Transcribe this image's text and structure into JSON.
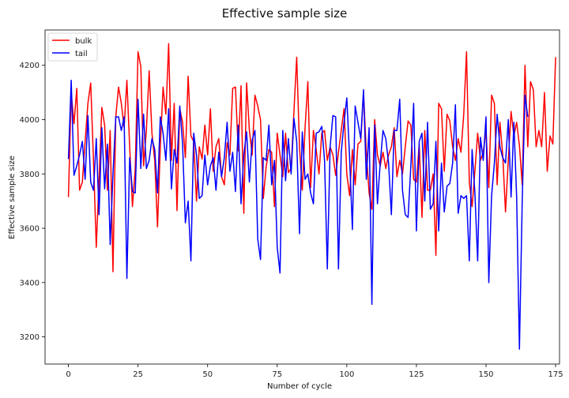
{
  "chart_data": {
    "type": "line",
    "title": "Effective sample size",
    "xlabel": "Number of cycle",
    "ylabel": "Effective sample size",
    "xlim": [
      -8.4,
      176.4
    ],
    "ylim": [
      3100,
      4330
    ],
    "xticks": [
      0,
      25,
      50,
      75,
      100,
      125,
      150,
      175
    ],
    "yticks": [
      3200,
      3400,
      3600,
      3800,
      4000,
      4200
    ],
    "grid": false,
    "legend_position": "top-left",
    "colors": {
      "bulk": "#ff0000",
      "tail": "#0000ff"
    },
    "series": [
      {
        "name": "bulk",
        "color": "#ff0000",
        "values": [
          3715,
          4100,
          3985,
          4115,
          3740,
          3770,
          3920,
          4060,
          4135,
          3850,
          3530,
          3780,
          4045,
          3980,
          3740,
          3960,
          3440,
          4010,
          4120,
          4060,
          3970,
          4145,
          3900,
          3680,
          3820,
          4250,
          4195,
          3830,
          3960,
          4180,
          3950,
          3850,
          3605,
          3900,
          4120,
          4020,
          4280,
          3850,
          4060,
          3665,
          4040,
          3990,
          3860,
          4160,
          3940,
          3920,
          3700,
          3900,
          3855,
          3980,
          3870,
          4040,
          3810,
          3900,
          3930,
          3790,
          3760,
          3915,
          3870,
          4115,
          4120,
          3885,
          4125,
          3655,
          4135,
          3960,
          3870,
          4090,
          4050,
          4000,
          3710,
          3825,
          3890,
          3880,
          3680,
          3950,
          3870,
          3790,
          3950,
          3805,
          3820,
          4030,
          4230,
          3900,
          3740,
          3970,
          4140,
          3750,
          3960,
          3890,
          3800,
          3950,
          3960,
          3850,
          3900,
          3870,
          3795,
          3880,
          3960,
          4040,
          3800,
          3720,
          3890,
          3760,
          3910,
          3920,
          4100,
          3880,
          3730,
          3670,
          4000,
          3870,
          3830,
          3880,
          3820,
          3870,
          3900,
          3970,
          3790,
          3850,
          3800,
          3900,
          3995,
          3980,
          3780,
          3770,
          3910,
          3640,
          3960,
          3740,
          3740,
          3800,
          3500,
          4060,
          4040,
          3810,
          4020,
          3995,
          3900,
          3850,
          3930,
          3880,
          4020,
          4250,
          3770,
          3680,
          3810,
          3950,
          3850,
          3880,
          3960,
          3750,
          4090,
          4060,
          3760,
          3990,
          3870,
          3660,
          3850,
          4030,
          3940,
          3990,
          3905,
          3760,
          4200,
          3900,
          4140,
          4110,
          3900,
          3960,
          3900,
          4100,
          3810,
          3940,
          3910,
          4230
        ]
      },
      {
        "name": "tail",
        "color": "#0000ff",
        "values": [
          3855,
          4145,
          3795,
          3830,
          3870,
          3920,
          3780,
          4015,
          3770,
          3740,
          3930,
          3650,
          3970,
          3745,
          3910,
          3540,
          3800,
          4010,
          4010,
          3960,
          4010,
          3415,
          3860,
          3735,
          3730,
          4075,
          3820,
          4020,
          3820,
          3850,
          3930,
          3890,
          3730,
          4010,
          3950,
          3850,
          4040,
          3745,
          3890,
          3840,
          4050,
          3910,
          3620,
          3700,
          3480,
          3950,
          3870,
          3710,
          3720,
          3870,
          3760,
          3830,
          3860,
          3740,
          3880,
          3790,
          3860,
          3990,
          3810,
          3880,
          3735,
          3980,
          3690,
          3870,
          3955,
          3770,
          3925,
          3960,
          3560,
          3485,
          3860,
          3850,
          3980,
          3760,
          3850,
          3530,
          3435,
          3960,
          3775,
          3930,
          3800,
          4005,
          3920,
          3580,
          3955,
          3780,
          3800,
          3730,
          3690,
          3950,
          3955,
          3975,
          3850,
          3450,
          3900,
          4015,
          4010,
          3450,
          3880,
          3990,
          4080,
          3860,
          3595,
          4050,
          3990,
          3930,
          4110,
          3780,
          3970,
          3320,
          3980,
          3690,
          3840,
          3960,
          3930,
          3840,
          3650,
          3960,
          3960,
          4075,
          3740,
          3650,
          3640,
          3830,
          4060,
          3590,
          3920,
          3950,
          3700,
          3990,
          3670,
          3690,
          3920,
          3590,
          3840,
          3660,
          3755,
          3765,
          3840,
          4055,
          3655,
          3720,
          3710,
          3720,
          3480,
          3890,
          3730,
          3480,
          3935,
          3850,
          4010,
          3400,
          3720,
          3840,
          4020,
          3900,
          3860,
          3840,
          4000,
          3715,
          3990,
          3715,
          3155,
          3700,
          4090,
          4010
        ]
      }
    ]
  }
}
